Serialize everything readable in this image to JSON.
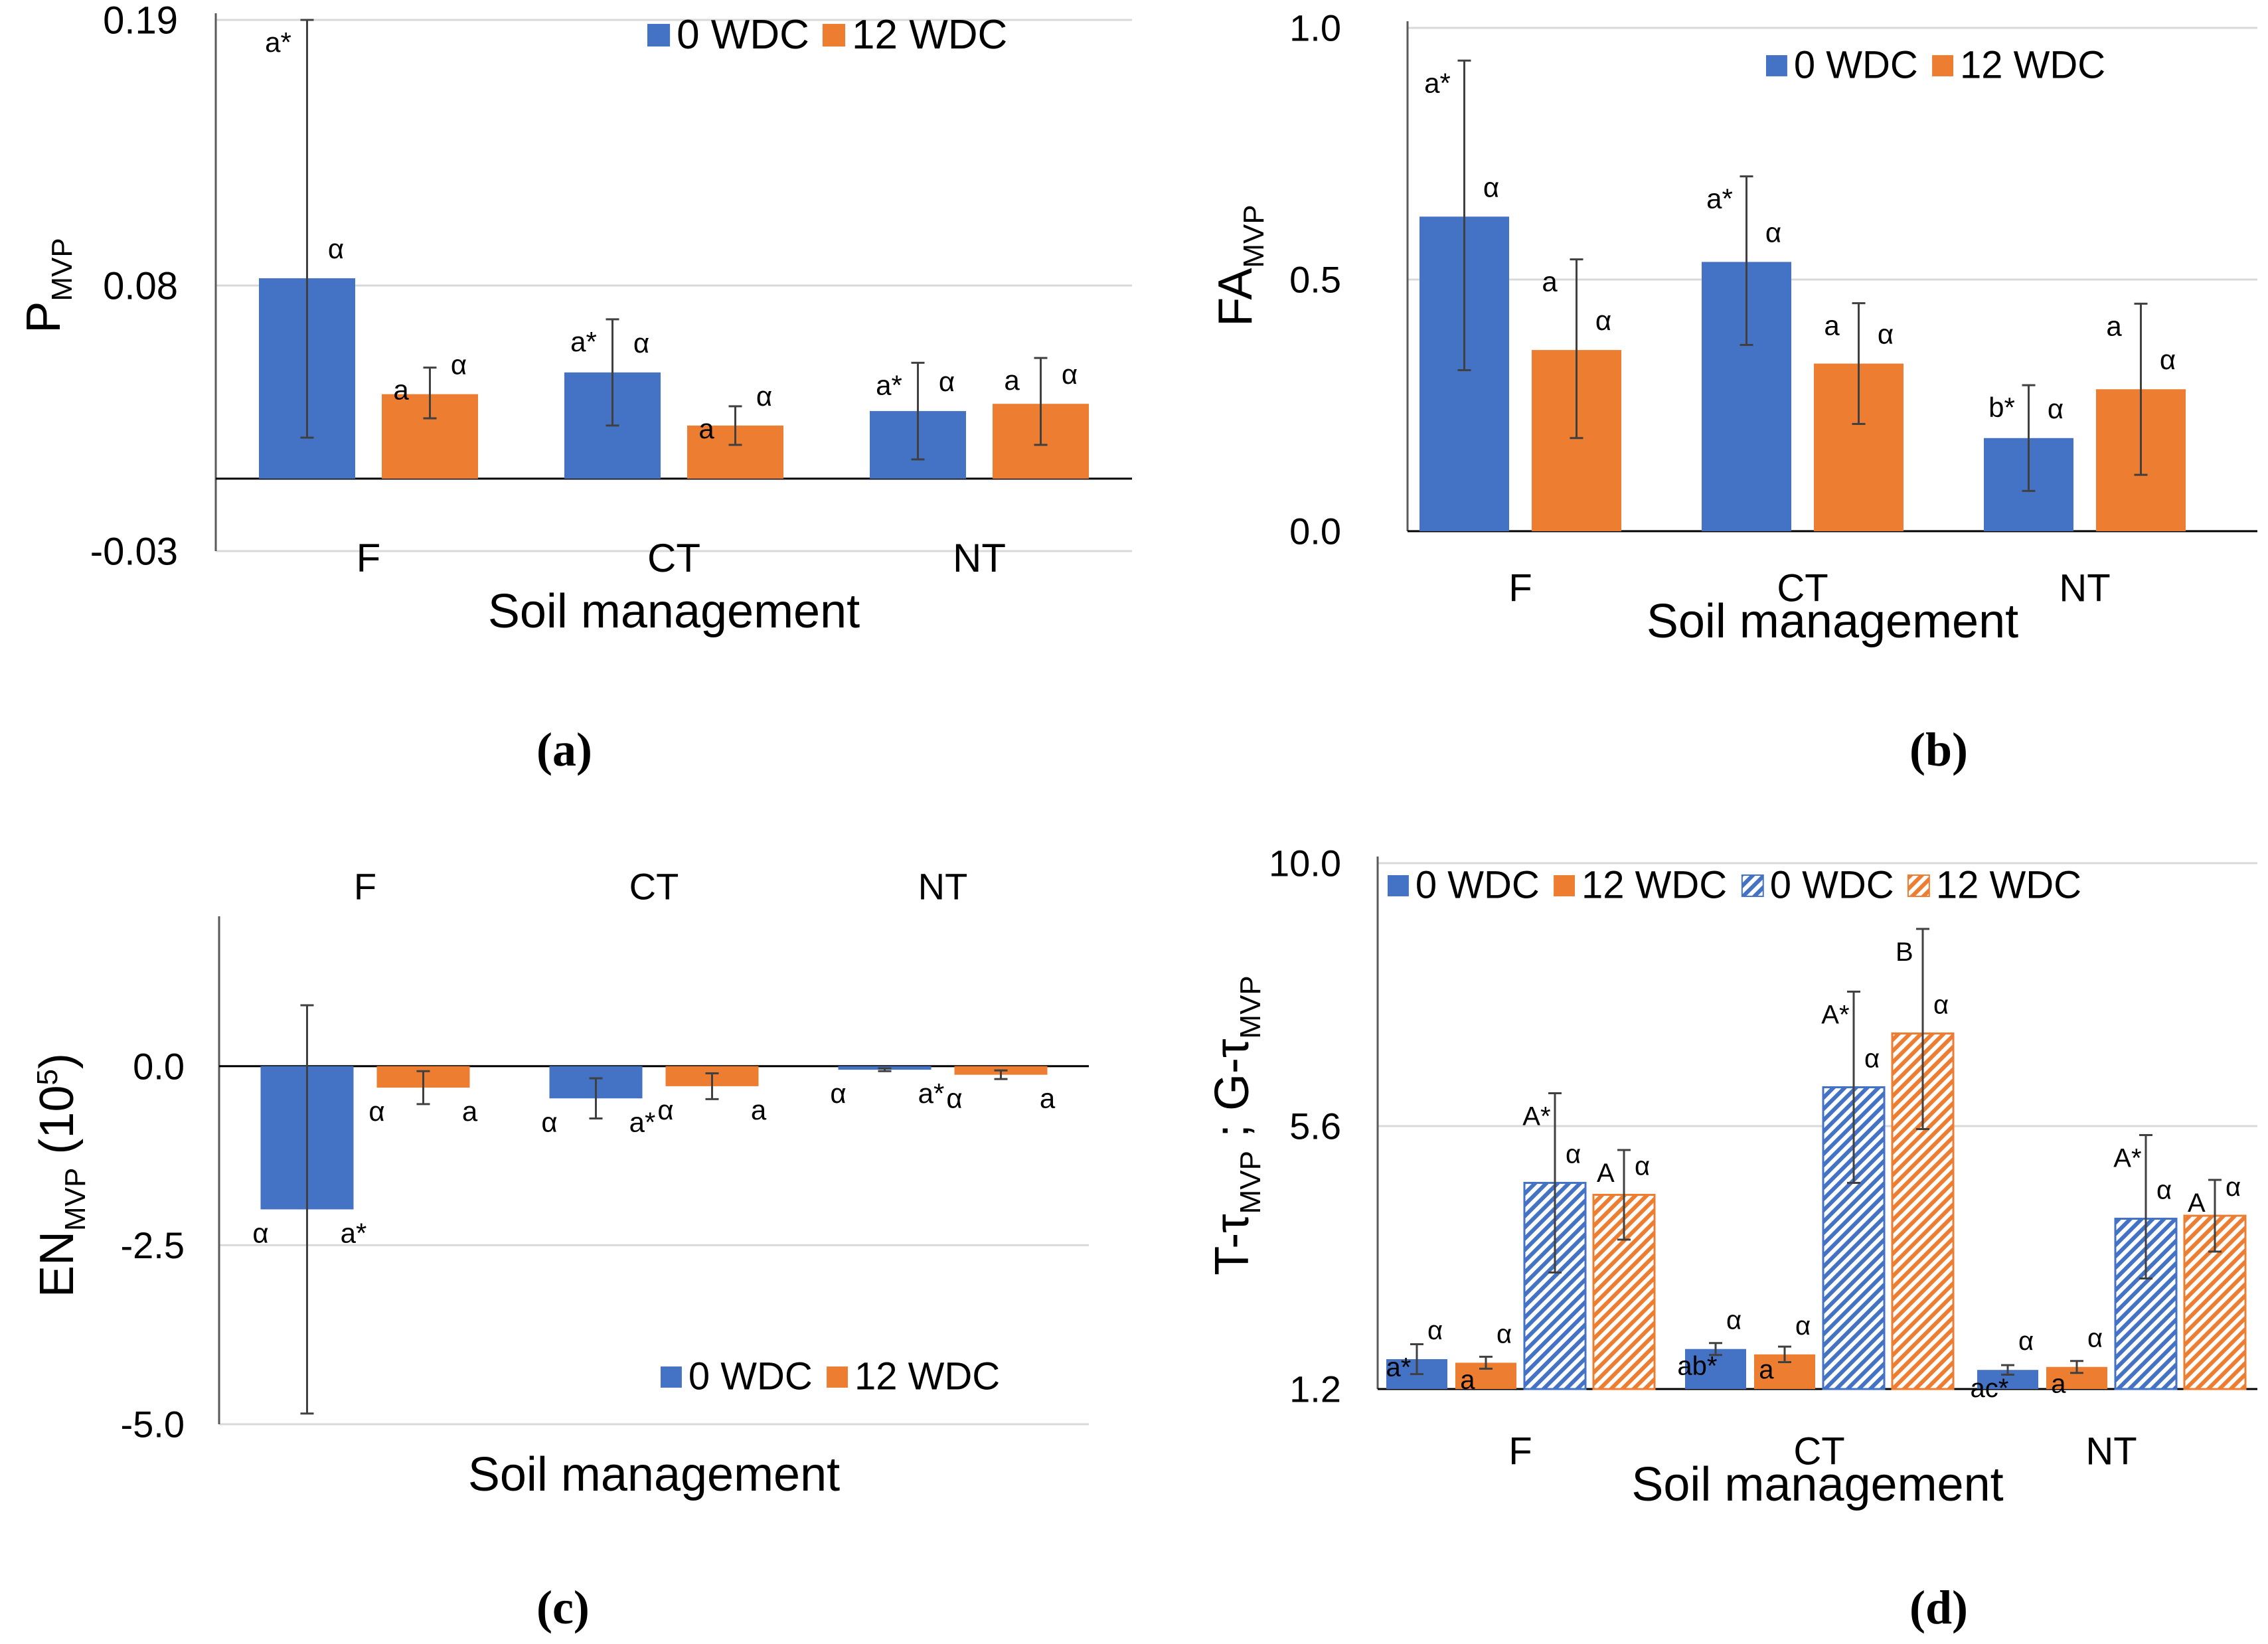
{
  "colors": {
    "blue": "#4472C4",
    "orange": "#ED7D31",
    "grid": "#D9D9D9",
    "axis": "#000000",
    "text": "#000000"
  },
  "panel_labels": [
    "(a)",
    "(b)",
    "(c)",
    "(d)"
  ],
  "chart_data": [
    {
      "id": "a",
      "type": "bar",
      "title": "",
      "xlabel": "Soil management",
      "ylabel": "P",
      "ylabel_sub": "MVP",
      "categories": [
        "F",
        "CT",
        "NT"
      ],
      "ylim": [
        -0.03,
        0.19
      ],
      "yticks": [
        0.19,
        0.08,
        -0.03
      ],
      "ytick_labels": [
        "0.19",
        "0.08",
        "-0.03"
      ],
      "grid": true,
      "legend": "top-right",
      "series": [
        {
          "name": "0 WDC",
          "values": [
            0.083,
            0.044,
            0.028
          ],
          "err_low": [
            0.066,
            0.022,
            0.02
          ],
          "err_high": [
            0.107,
            0.022,
            0.02
          ],
          "letters": [
            "a*",
            "a*",
            "a*"
          ],
          "greek": [
            "α",
            "α",
            "α"
          ]
        },
        {
          "name": "12 WDC",
          "values": [
            0.035,
            0.022,
            0.031
          ],
          "err_low": [
            0.01,
            0.008,
            0.017
          ],
          "err_high": [
            0.011,
            0.008,
            0.019
          ],
          "letters": [
            "a",
            "a",
            "a"
          ],
          "greek": [
            "α",
            "α",
            "α"
          ]
        }
      ]
    },
    {
      "id": "b",
      "type": "bar",
      "title": "",
      "xlabel": "Soil management",
      "ylabel": "FA",
      "ylabel_sub": "MVP",
      "categories": [
        "F",
        "CT",
        "NT"
      ],
      "ylim": [
        0.0,
        1.0
      ],
      "yticks": [
        1.0,
        0.5,
        0.0
      ],
      "ytick_labels": [
        "1.0",
        "0.5",
        "0.0"
      ],
      "grid": true,
      "legend": "top-right",
      "series": [
        {
          "name": "0 WDC",
          "values": [
            0.625,
            0.535,
            0.185
          ],
          "err_low": [
            0.305,
            0.165,
            0.105
          ],
          "err_high": [
            0.31,
            0.17,
            0.105
          ],
          "letters": [
            "a*",
            "a*",
            "b*"
          ],
          "greek": [
            "α",
            "α",
            "α"
          ]
        },
        {
          "name": "12 WDC",
          "values": [
            0.36,
            0.333,
            0.282
          ],
          "err_low": [
            0.175,
            0.12,
            0.17
          ],
          "err_high": [
            0.18,
            0.12,
            0.17
          ],
          "letters": [
            "a",
            "a",
            "a"
          ],
          "greek": [
            "α",
            "α",
            "α"
          ]
        }
      ]
    },
    {
      "id": "c",
      "type": "bar",
      "title": "",
      "xlabel": "Soil management",
      "ylabel": "EN",
      "ylabel_sub": "MVP",
      "ylabel_suffix": " (10",
      "ylabel_sup": "5",
      "ylabel_end": ")",
      "categories": [
        "F",
        "CT",
        "NT"
      ],
      "categories_position": "top",
      "ylim": [
        -5.0,
        2.0
      ],
      "yticks": [
        0.0,
        -2.5,
        -5.0
      ],
      "ytick_labels": [
        "0.0",
        "-2.5",
        "-5.0"
      ],
      "grid": true,
      "legend": "bottom-right",
      "series": [
        {
          "name": "0 WDC",
          "values": [
            -2.0,
            -0.45,
            -0.05
          ],
          "err_low": [
            2.85,
            0.28,
            0.02
          ],
          "err_high": [
            2.85,
            0.28,
            0.02
          ],
          "letters": [
            "a*",
            "a*",
            "a*"
          ],
          "greek": [
            "α",
            "α",
            "α"
          ]
        },
        {
          "name": "12 WDC",
          "values": [
            -0.3,
            -0.28,
            -0.12
          ],
          "err_low": [
            0.23,
            0.18,
            0.06
          ],
          "err_high": [
            0.23,
            0.18,
            0.06
          ],
          "letters": [
            "a",
            "a",
            "a"
          ],
          "greek": [
            "α",
            "α",
            "α"
          ]
        }
      ]
    },
    {
      "id": "d",
      "type": "bar",
      "title": "",
      "xlabel": "Soil management",
      "ylabel": "T-τ",
      "ylabel_sub": "MVP",
      "ylabel_mid": " ; G-τ",
      "ylabel_sub2": "MVP",
      "categories": [
        "F",
        "CT",
        "NT"
      ],
      "ylim": [
        1.2,
        10.0
      ],
      "yticks": [
        10.0,
        5.6,
        1.2
      ],
      "ytick_labels": [
        "10.0",
        "5.6",
        "1.2"
      ],
      "grid": true,
      "legend": "top",
      "series": [
        {
          "name": "0 WDC",
          "hatched": false,
          "values": [
            1.7,
            1.87,
            1.52
          ],
          "err_low": [
            0.25,
            0.1,
            0.08
          ],
          "err_high": [
            0.25,
            0.1,
            0.08
          ],
          "letters": [
            "a*",
            "ab*",
            "ac*"
          ],
          "greek": [
            "α",
            "α",
            "α"
          ]
        },
        {
          "name": "12 WDC",
          "hatched": false,
          "values": [
            1.64,
            1.78,
            1.57
          ],
          "err_low": [
            0.1,
            0.13,
            0.1
          ],
          "err_high": [
            0.1,
            0.13,
            0.1
          ],
          "letters": [
            "a",
            "a",
            "a"
          ],
          "greek": [
            "α",
            "α",
            "α"
          ]
        },
        {
          "name": "0 WDC",
          "hatched": true,
          "values": [
            4.65,
            6.25,
            4.05
          ],
          "err_low": [
            1.5,
            1.6,
            1.0
          ],
          "err_high": [
            1.5,
            1.6,
            1.4
          ],
          "letters": [
            "A*",
            "A*",
            "A*"
          ],
          "greek": [
            "α",
            "α",
            "α"
          ]
        },
        {
          "name": "12 WDC",
          "hatched": true,
          "values": [
            4.45,
            7.15,
            4.1
          ],
          "err_low": [
            0.75,
            1.6,
            0.6
          ],
          "err_high": [
            0.75,
            1.75,
            0.6
          ],
          "letters": [
            "A",
            "B",
            "A"
          ],
          "greek": [
            "α",
            "α",
            "α"
          ]
        }
      ]
    }
  ]
}
